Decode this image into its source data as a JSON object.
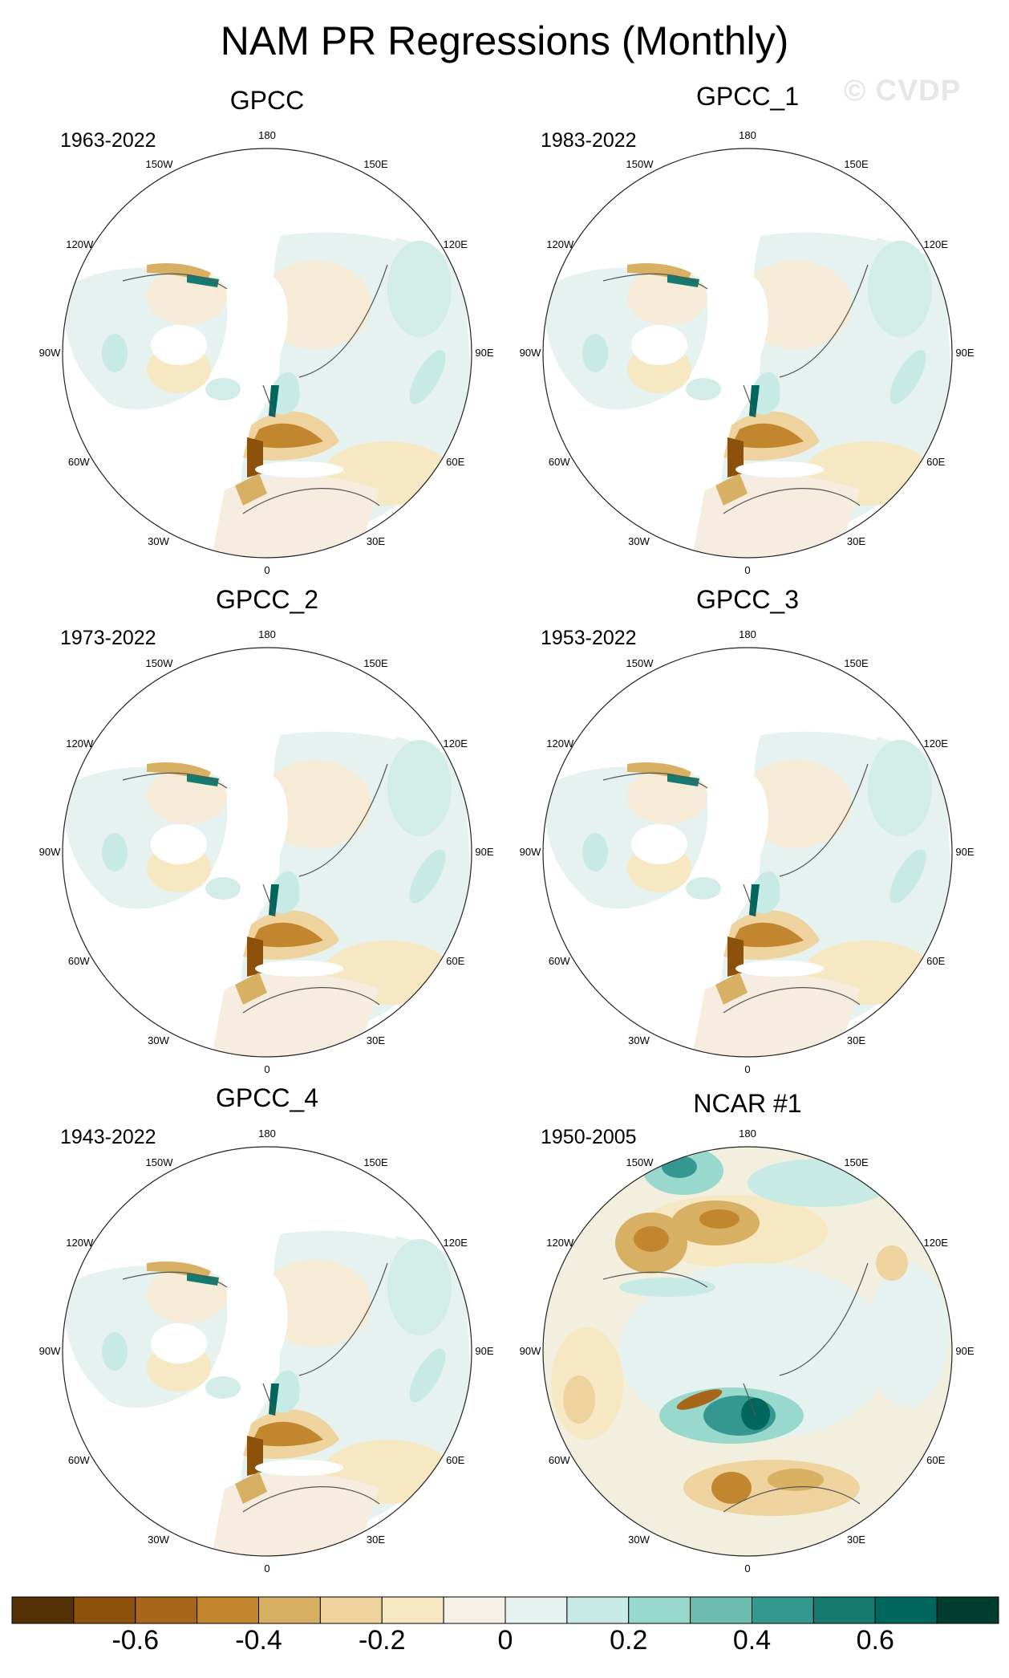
{
  "title": "NAM PR Regressions (Monthly)",
  "watermark": "© CVDP",
  "chart_data": {
    "type": "polar-map-panels",
    "projection": "north-polar-stereographic",
    "longitude_labels": [
      "180",
      "150E",
      "120E",
      "90E",
      "60E",
      "30E",
      "0",
      "30W",
      "60W",
      "90W",
      "120W",
      "150W"
    ],
    "panels": [
      {
        "name": "GPCC",
        "period": "1963-2022"
      },
      {
        "name": "GPCC_1",
        "period": "1983-2022"
      },
      {
        "name": "GPCC_2",
        "period": "1973-2022"
      },
      {
        "name": "GPCC_3",
        "period": "1953-2022"
      },
      {
        "name": "GPCC_4",
        "period": "1943-2022"
      },
      {
        "name": "NCAR #1",
        "period": "1950-2005"
      }
    ],
    "colorbar": {
      "levels": [
        -0.7,
        -0.6,
        -0.5,
        -0.4,
        -0.3,
        -0.2,
        -0.1,
        0,
        0.1,
        0.2,
        0.3,
        0.4,
        0.5,
        0.6,
        0.7
      ],
      "tick_labels": [
        "-0.6",
        "-0.4",
        "-0.2",
        "0",
        "0.2",
        "0.4",
        "0.6"
      ],
      "colors": [
        "#543005",
        "#8c510a",
        "#a7661a",
        "#c2862f",
        "#d8b064",
        "#eed39e",
        "#f6e8c3",
        "#f5f1e6",
        "#e6f2ef",
        "#c7eae5",
        "#99d8cc",
        "#6cbdb0",
        "#35978f",
        "#167a70",
        "#01665e",
        "#003c30"
      ]
    }
  }
}
